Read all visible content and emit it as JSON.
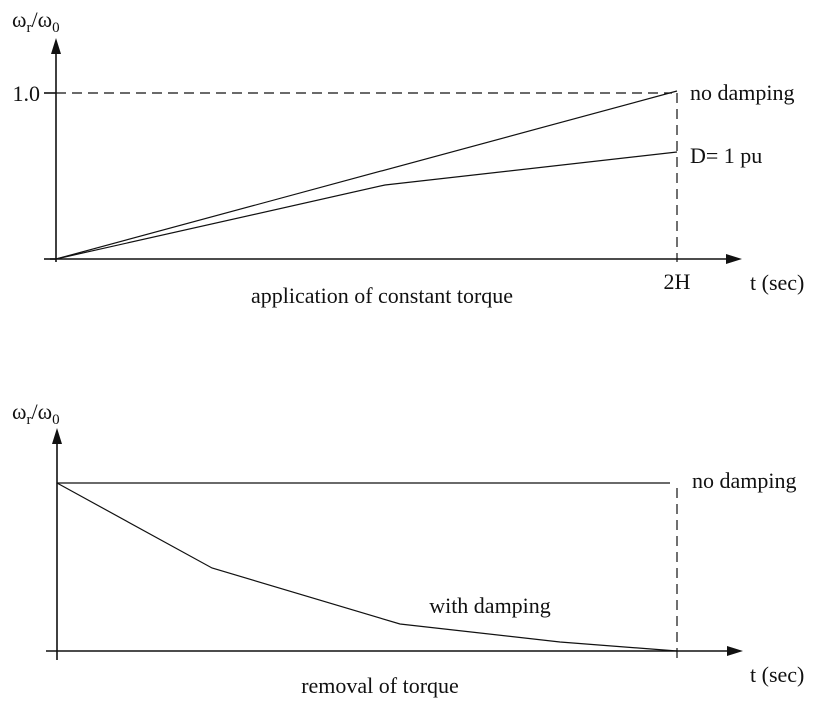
{
  "chart_data": [
    {
      "type": "line",
      "title": "application of constant torque",
      "ylabel": "ωr/ω0",
      "xlabel": "t (sec)",
      "x_ticks": [
        "2H"
      ],
      "y_ticks": [
        "1.0"
      ],
      "xlim": [
        0,
        2.4
      ],
      "ylim": [
        0,
        1.2
      ],
      "series": [
        {
          "name": "no damping",
          "x": [
            0,
            2
          ],
          "y": [
            0,
            1.0
          ]
        },
        {
          "name": "D= 1 pu",
          "x": [
            0,
            1.05,
            2
          ],
          "y": [
            0,
            0.45,
            0.64
          ]
        }
      ],
      "reference_lines": [
        {
          "orientation": "horizontal",
          "value": 1.0,
          "style": "dashed"
        },
        {
          "orientation": "vertical",
          "value": 2,
          "style": "dashed"
        }
      ]
    },
    {
      "type": "line",
      "title": "removal of torque",
      "ylabel": "ωr/ω0",
      "xlabel": "t (sec)",
      "xlim": [
        0,
        2.4
      ],
      "ylim": [
        0,
        1.4
      ],
      "series": [
        {
          "name": "no damping",
          "x": [
            0,
            2
          ],
          "y": [
            1.0,
            1.0
          ]
        },
        {
          "name": "with damping",
          "x": [
            0,
            0.5,
            1.12,
            1.6,
            2
          ],
          "y": [
            1.0,
            0.496,
            0.16,
            0.05,
            0
          ]
        }
      ],
      "reference_lines": [
        {
          "orientation": "vertical",
          "value": 2,
          "style": "dashed"
        }
      ]
    }
  ]
}
